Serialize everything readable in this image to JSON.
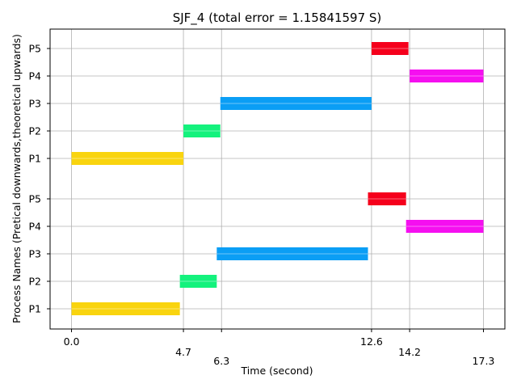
{
  "chart_data": {
    "type": "gantt",
    "title": "SJF_4 (total error = 1.15841597 S)",
    "xlabel": "Time (second)",
    "ylabel": "Process Names (Pretical downwards,theoretical upwards)",
    "xlim": [
      -0.9,
      18.2
    ],
    "grid": true,
    "x_ticks": [
      {
        "value": 0.0,
        "label": "0.0",
        "row": 0
      },
      {
        "value": 4.7,
        "label": "4.7",
        "row": 1
      },
      {
        "value": 6.3,
        "label": "6.3",
        "row": 2
      },
      {
        "value": 12.6,
        "label": "12.6",
        "row": 0
      },
      {
        "value": 14.2,
        "label": "14.2",
        "row": 1
      },
      {
        "value": 17.3,
        "label": "17.3",
        "row": 2
      }
    ],
    "y_labels": [
      "P1",
      "P2",
      "P3",
      "P4",
      "P5",
      "P1",
      "P2",
      "P3",
      "P4",
      "P5"
    ],
    "bars": [
      {
        "lane": 0,
        "label": "P1",
        "start": 0.0,
        "end": 4.55,
        "color": "#f9d40f"
      },
      {
        "lane": 1,
        "label": "P2",
        "start": 4.55,
        "end": 6.1,
        "color": "#14f27d"
      },
      {
        "lane": 2,
        "label": "P3",
        "start": 6.1,
        "end": 12.45,
        "color": "#0b9ef5"
      },
      {
        "lane": 3,
        "label": "P4",
        "start": 14.05,
        "end": 17.3,
        "color": "#f50ff0"
      },
      {
        "lane": 4,
        "label": "P5",
        "start": 12.45,
        "end": 14.05,
        "color": "#f5001c"
      },
      {
        "lane": 5,
        "label": "P1",
        "start": 0.0,
        "end": 4.7,
        "color": "#f9d40f"
      },
      {
        "lane": 6,
        "label": "P2",
        "start": 4.7,
        "end": 6.25,
        "color": "#14f27d"
      },
      {
        "lane": 7,
        "label": "P3",
        "start": 6.25,
        "end": 12.6,
        "color": "#0b9ef5"
      },
      {
        "lane": 8,
        "label": "P4",
        "start": 14.2,
        "end": 17.3,
        "color": "#f50ff0"
      },
      {
        "lane": 9,
        "label": "P5",
        "start": 12.6,
        "end": 14.15,
        "color": "#f5001c"
      }
    ]
  }
}
